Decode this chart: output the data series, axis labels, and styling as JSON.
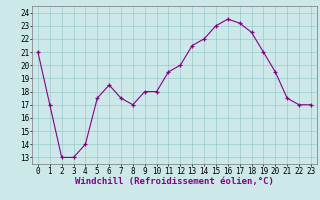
{
  "x": [
    0,
    1,
    2,
    3,
    4,
    5,
    6,
    7,
    8,
    9,
    10,
    11,
    12,
    13,
    14,
    15,
    16,
    17,
    18,
    19,
    20,
    21,
    22,
    23
  ],
  "y": [
    21,
    17,
    13,
    13,
    14,
    17.5,
    18.5,
    17.5,
    17,
    18,
    18,
    19.5,
    20,
    21.5,
    22,
    23,
    23.5,
    23.2,
    22.5,
    21,
    19.5,
    17.5,
    17,
    17
  ],
  "line_color": "#880088",
  "marker": "+",
  "bg_color": "#cce8e8",
  "grid_color": "#99cccc",
  "xlabel": "Windchill (Refroidissement éolien,°C)",
  "ylim": [
    12.5,
    24.5
  ],
  "xlim": [
    -0.5,
    23.5
  ],
  "yticks": [
    13,
    14,
    15,
    16,
    17,
    18,
    19,
    20,
    21,
    22,
    23,
    24
  ],
  "xticks": [
    0,
    1,
    2,
    3,
    4,
    5,
    6,
    7,
    8,
    9,
    10,
    11,
    12,
    13,
    14,
    15,
    16,
    17,
    18,
    19,
    20,
    21,
    22,
    23
  ],
  "label_fontsize": 6.5,
  "tick_fontsize": 5.5
}
